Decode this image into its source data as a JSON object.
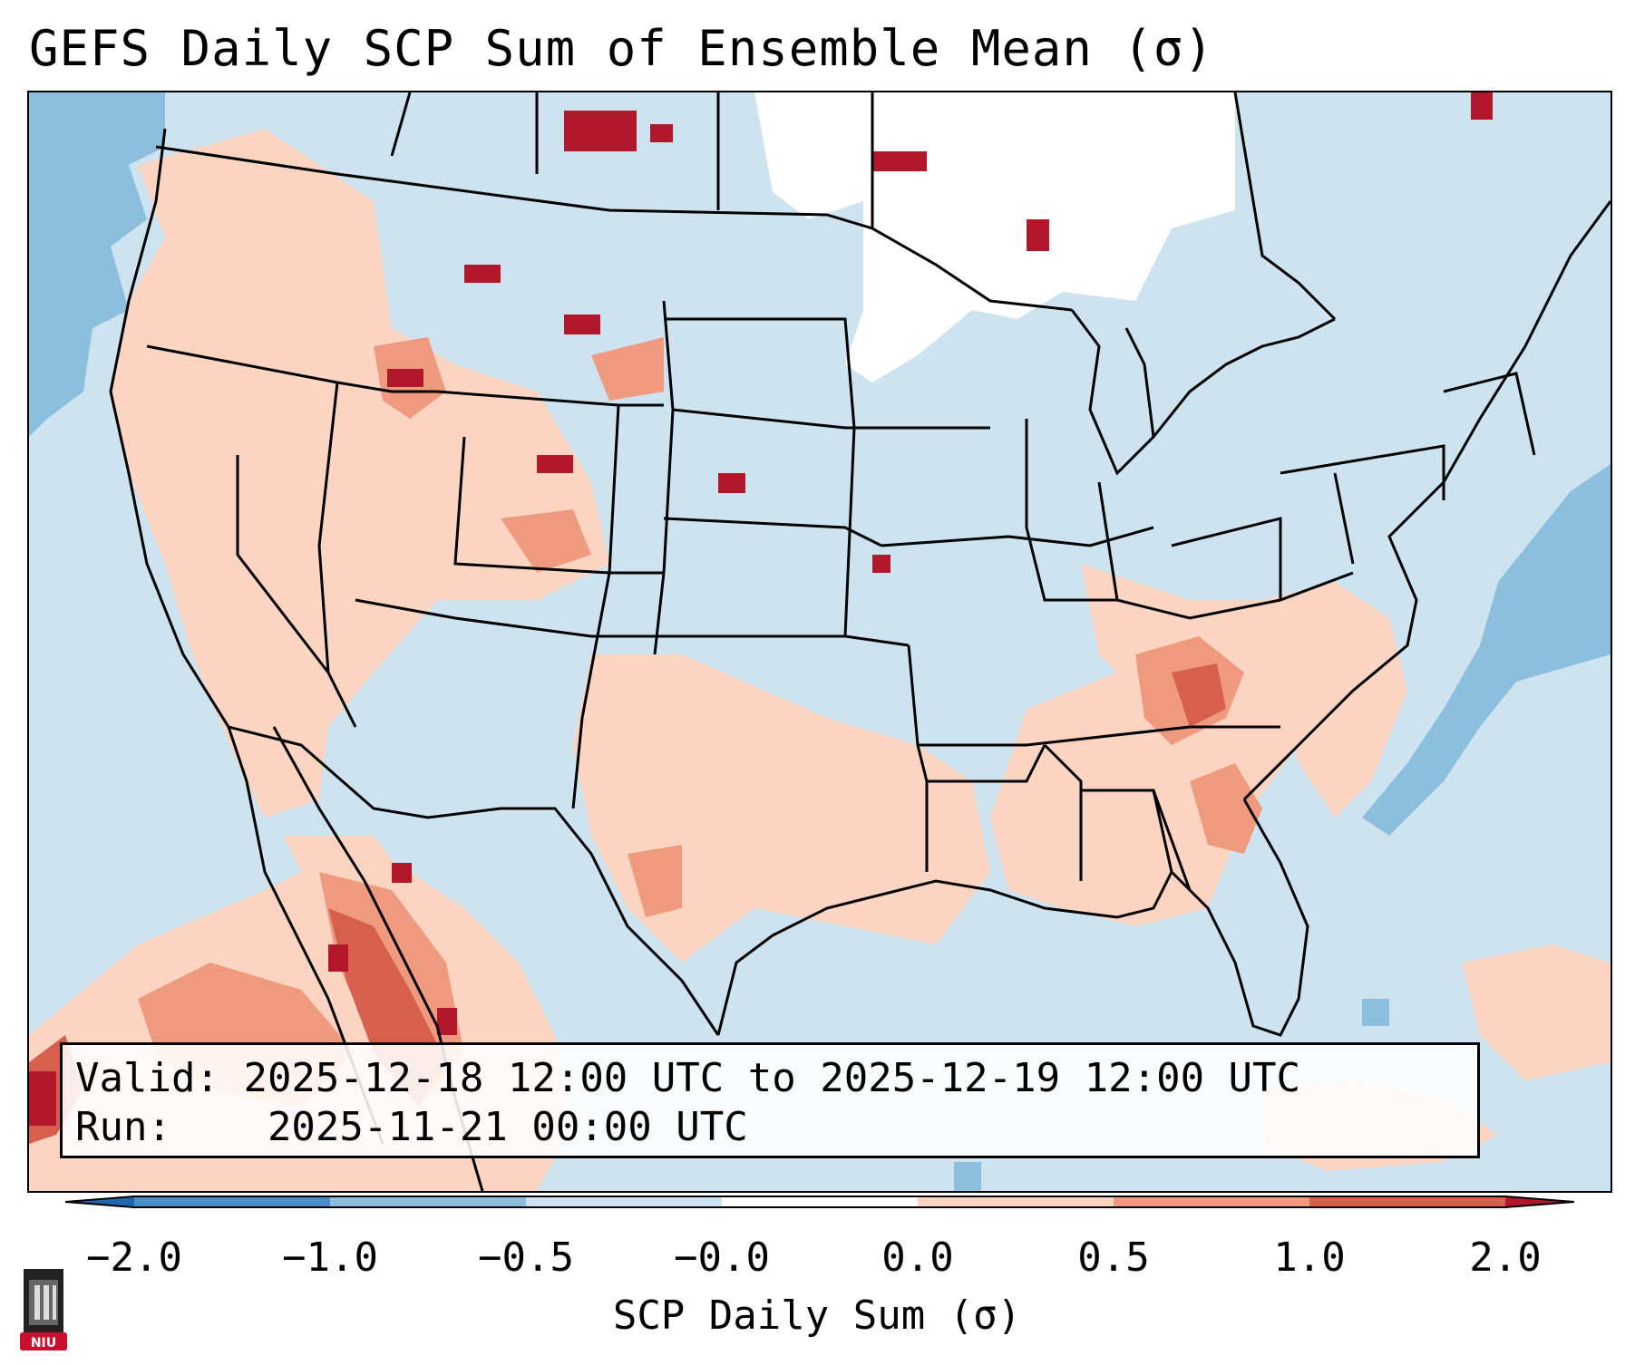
{
  "title": "GEFS Daily SCP Sum of Ensemble Mean (σ)",
  "info": {
    "valid_label": "Valid:",
    "valid_value": "2025-12-18 12:00 UTC to 2025-12-19 12:00 UTC",
    "run_label": "Run:",
    "run_value": "2025-11-21 00:00 UTC"
  },
  "colorbar": {
    "label": "SCP Daily Sum (σ)",
    "ticks": [
      "−2.0",
      "−1.0",
      "−0.5",
      "−0.0",
      "0.0",
      "0.5",
      "1.0",
      "2.0"
    ],
    "bins": [
      {
        "from": "-2.0",
        "to": "-1.0",
        "color": "#4a90c8"
      },
      {
        "from": "-1.0",
        "to": "-0.5",
        "color": "#8cbfdd"
      },
      {
        "from": "-0.5",
        "to": "-0.0",
        "color": "#cde3ef"
      },
      {
        "from": "-0.0",
        "to": "0.0",
        "color": "#ffffff"
      },
      {
        "from": "0.0",
        "to": "0.5",
        "color": "#fbd5c2"
      },
      {
        "from": "0.5",
        "to": "1.0",
        "color": "#ef9a7e"
      },
      {
        "from": "1.0",
        "to": "2.0",
        "color": "#d6604d"
      }
    ],
    "under_color": "#2166ac",
    "over_color": "#b2182b"
  },
  "logo": {
    "text": "NIU",
    "color": "#c8102e"
  },
  "colors": {
    "background": "#cde3ef",
    "light_blue": "#8cbfdd",
    "peach": "#fbd5c2",
    "salmon": "#ef9a7e",
    "red": "#d6604d",
    "dark_red": "#b2182b",
    "white": "#ffffff"
  }
}
